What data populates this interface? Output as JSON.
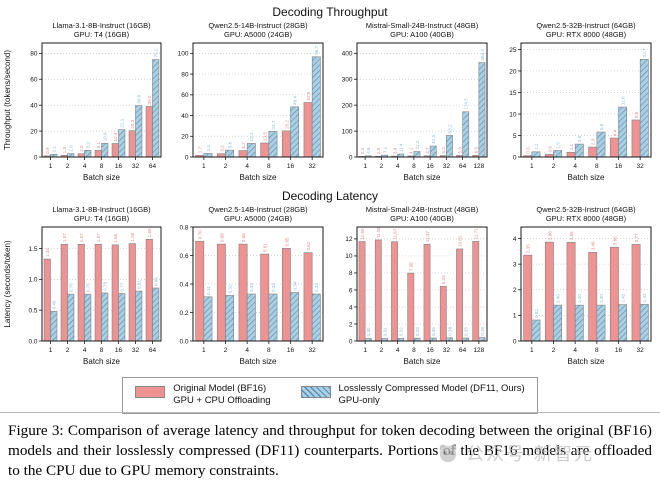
{
  "page": {
    "row_titles": [
      "Decoding Throughput",
      "Decoding Latency"
    ],
    "legend": {
      "items": [
        {
          "line1": "Original Model (BF16)",
          "line2": "GPU + CPU Offloading"
        },
        {
          "line1": "Losslessly Compressed Model (DF11, Ours)",
          "line2": "GPU-only"
        }
      ]
    },
    "caption": "Figure 3: Comparison of average latency and throughput for token decoding between the original (BF16) models and their losslessly compressed (DF11) counterparts. Portions of the BF16 models are offloaded to the CPU due to GPU memory constraints.",
    "watermark_text": "公众号·新智元"
  },
  "colors": {
    "bf16_fill": "#ef9292",
    "bf16_label": "#e88a8a",
    "df11_fill": "#abd0e3",
    "df11_hatch": "#568fb4",
    "df11_label": "#8cc0da",
    "bar_edge": "#808080",
    "grid": "#c8c8c8",
    "spine": "#1a1a1a"
  },
  "chart_data": [
    {
      "type": "bar",
      "title1": "Llama-3.1-8B-Instruct (16GB)",
      "title2": "GPU: T4 (16GB)",
      "xlabel": "Batch size",
      "ylabel": "Throughput (tokens/second)",
      "categories": [
        "1",
        "2",
        "4",
        "8",
        "16",
        "32",
        "64"
      ],
      "yticks": [
        "0",
        "20",
        "40",
        "60",
        "80"
      ],
      "ymax": 88,
      "label_decimals": 1,
      "series": [
        {
          "name": "Original Model (BF16), GPU + CPU Offloading",
          "values": [
            0.9,
            1.3,
            2.5,
            5.1,
            10.4,
            20.3,
            39.0
          ]
        },
        {
          "name": "Losslessly Compressed Model (DF11, Ours), GPU-only",
          "values": [
            2.1,
            2.6,
            5.2,
            10.6,
            21.1,
            39.6,
            75.2
          ]
        }
      ]
    },
    {
      "type": "bar",
      "title1": "Qwen2.5-14B-Instruct (28GB)",
      "title2": "GPU: A5000 (24GB)",
      "xlabel": "Batch size",
      "ylabel": null,
      "categories": [
        "1",
        "2",
        "4",
        "8",
        "16",
        "32"
      ],
      "yticks": [
        "0",
        "20",
        "40",
        "60",
        "80",
        "100"
      ],
      "ymax": 110,
      "label_decimals": 1,
      "series": [
        {
          "name": "Original Model (BF16), GPU + CPU Offloading",
          "values": [
            1.7,
            3.2,
            6.2,
            13.5,
            25.2,
            52.6
          ]
        },
        {
          "name": "Losslessly Compressed Model (DF11, Ours), GPU-only",
          "values": [
            3.4,
            6.6,
            13.1,
            24.7,
            48.4,
            96.7
          ]
        }
      ]
    },
    {
      "type": "bar",
      "title1": "Mistral-Small-24B-Instruct (48GB)",
      "title2": "GPU: A100 (40GB)",
      "xlabel": "Batch size",
      "ylabel": null,
      "categories": [
        "1",
        "2",
        "4",
        "8",
        "16",
        "32",
        "64",
        "128"
      ],
      "yticks": [
        "0",
        "100",
        "200",
        "300",
        "400"
      ],
      "ymax": 440,
      "label_decimals": 1,
      "series": [
        {
          "name": "Original Model (BF16), GPU + CPU Offloading",
          "values": [
            2.4,
            2.9,
            3.4,
            4.1,
            4.7,
            5.3,
            5.9,
            6.5
          ]
        },
        {
          "name": "Losslessly Compressed Model (DF11, Ours), GPU-only",
          "values": [
            4.6,
            7.1,
            11.4,
            21.2,
            42.3,
            83.2,
            174.5,
            364.4
          ]
        }
      ]
    },
    {
      "type": "bar",
      "title1": "Qwen2.5-32B-Instruct (64GB)",
      "title2": "GPU: RTX 8000 (48GB)",
      "xlabel": "Batch size",
      "ylabel": null,
      "categories": [
        "1",
        "2",
        "4",
        "8",
        "16",
        "32"
      ],
      "yticks": [
        "0",
        "5",
        "10",
        "15",
        "20",
        "25"
      ],
      "ymax": 26.5,
      "label_decimals": 1,
      "series": [
        {
          "name": "Original Model (BF16), GPU + CPU Offloading",
          "values": [
            0.3,
            0.6,
            1.1,
            2.3,
            4.4,
            8.6
          ]
        },
        {
          "name": "Losslessly Compressed Model (DF11, Ours), GPU-only",
          "values": [
            1.2,
            1.5,
            3.0,
            5.8,
            11.6,
            22.7
          ]
        }
      ]
    },
    {
      "type": "bar",
      "title1": "Llama-3.1-8B-Instruct (16GB)",
      "title2": "GPU: T4 (16GB)",
      "xlabel": "Batch size",
      "ylabel": "Latency (seconds/token)",
      "categories": [
        "1",
        "2",
        "4",
        "8",
        "16",
        "32",
        "64"
      ],
      "yticks": [
        "0.0",
        "0.5",
        "1.0",
        "1.5"
      ],
      "ymax": 1.85,
      "label_decimals": 2,
      "series": [
        {
          "name": "Original Model (BF16), GPU + CPU Offloading",
          "values": [
            1.33,
            1.57,
            1.57,
            1.57,
            1.56,
            1.58,
            1.65
          ]
        },
        {
          "name": "Losslessly Compressed Model (DF11, Ours), GPU-only",
          "values": [
            0.48,
            0.76,
            0.76,
            0.78,
            0.77,
            0.81,
            0.86
          ]
        }
      ]
    },
    {
      "type": "bar",
      "title1": "Qwen2.5-14B-Instruct (28GB)",
      "title2": "GPU: A5000 (24GB)",
      "xlabel": "Batch size",
      "ylabel": null,
      "categories": [
        "1",
        "2",
        "4",
        "8",
        "16",
        "32"
      ],
      "yticks": [
        "0.0",
        "0.2",
        "0.4",
        "0.6",
        "0.8"
      ],
      "ymax": 0.8,
      "label_decimals": 2,
      "series": [
        {
          "name": "Original Model (BF16), GPU + CPU Offloading",
          "values": [
            0.7,
            0.68,
            0.68,
            0.61,
            0.65,
            0.62
          ]
        },
        {
          "name": "Losslessly Compressed Model (DF11, Ours), GPU-only",
          "values": [
            0.31,
            0.32,
            0.33,
            0.33,
            0.34,
            0.33
          ]
        }
      ]
    },
    {
      "type": "bar",
      "title1": "Mistral-Small-24B-Instruct (48GB)",
      "title2": "GPU: A100 (40GB)",
      "xlabel": "Batch size",
      "ylabel": null,
      "categories": [
        "1",
        "2",
        "4",
        "8",
        "16",
        "32",
        "64",
        "128"
      ],
      "yticks": [
        "0",
        "2",
        "4",
        "6",
        "8",
        "10",
        "12"
      ],
      "ymax": 13.4,
      "label_decimals": 2,
      "series": [
        {
          "name": "Original Model (BF16), GPU + CPU Offloading",
          "values": [
            11.69,
            11.88,
            11.67,
            7.98,
            11.37,
            6.43,
            10.82,
            11.71
          ]
        },
        {
          "name": "Losslessly Compressed Model (DF11, Ours), GPU-only",
          "values": [
            0.3,
            0.31,
            0.32,
            0.33,
            0.35,
            0.38,
            0.35,
            0.4
          ]
        }
      ]
    },
    {
      "type": "bar",
      "title1": "Qwen2.5-32B-Instruct (64GB)",
      "title2": "GPU: RTX 8000 (48GB)",
      "xlabel": "Batch size",
      "ylabel": null,
      "categories": [
        "1",
        "2",
        "4",
        "8",
        "16",
        "32"
      ],
      "yticks": [
        "0",
        "1",
        "2",
        "3",
        "4"
      ],
      "ymax": 4.45,
      "label_decimals": 2,
      "series": [
        {
          "name": "Original Model (BF16), GPU + CPU Offloading",
          "values": [
            3.35,
            3.86,
            3.85,
            3.46,
            3.66,
            3.77
          ]
        },
        {
          "name": "Losslessly Compressed Model (DF11, Ours), GPU-only",
          "values": [
            0.82,
            1.4,
            1.4,
            1.4,
            1.42,
            1.43
          ]
        }
      ]
    }
  ]
}
